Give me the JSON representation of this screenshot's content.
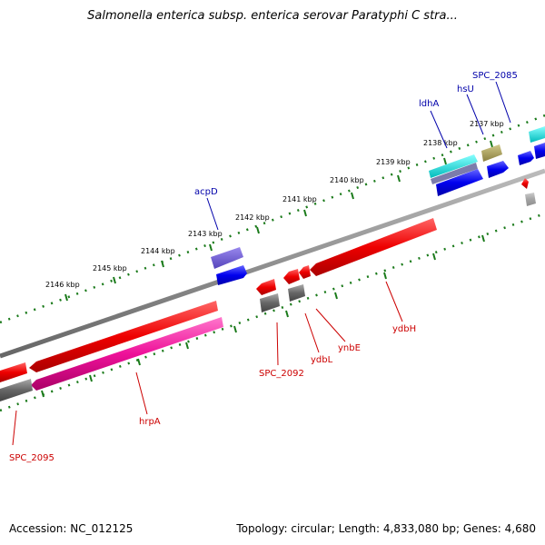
{
  "title": "Salmonella enterica subsp. enterica serovar Paratyphi C stra...",
  "footer": {
    "accession_label": "Accession:",
    "accession": "NC_012125",
    "topology_text": "Topology: circular; Length: 4,833,080 bp; Genes: 4,680"
  },
  "ticks": [
    "2146 kbp",
    "2145 kbp",
    "2144 kbp",
    "2143 kbp",
    "2142 kbp",
    "2141 kbp",
    "2140 kbp",
    "2139 kbp",
    "2138 kbp",
    "2137 kbp"
  ],
  "genes_forward_labels": [
    "acpD",
    "ldhA",
    "hsU",
    "SPC_2085"
  ],
  "genes_reverse_labels": [
    "SPC_2095",
    "hrpA",
    "SPC_2092",
    "ydbL",
    "ynbE",
    "ydbH"
  ],
  "colors": {
    "backbone": "#888888",
    "forward_label": "#0000aa",
    "reverse_label": "#cc0000",
    "dots": "#1a7a1a",
    "red": "#ee0000",
    "magenta": "#ee1199",
    "grey_gene": "#666666",
    "blue": "#0000ee",
    "purple": "#6655cc",
    "cyan": "#00dddd",
    "olive": "#aaa055"
  }
}
